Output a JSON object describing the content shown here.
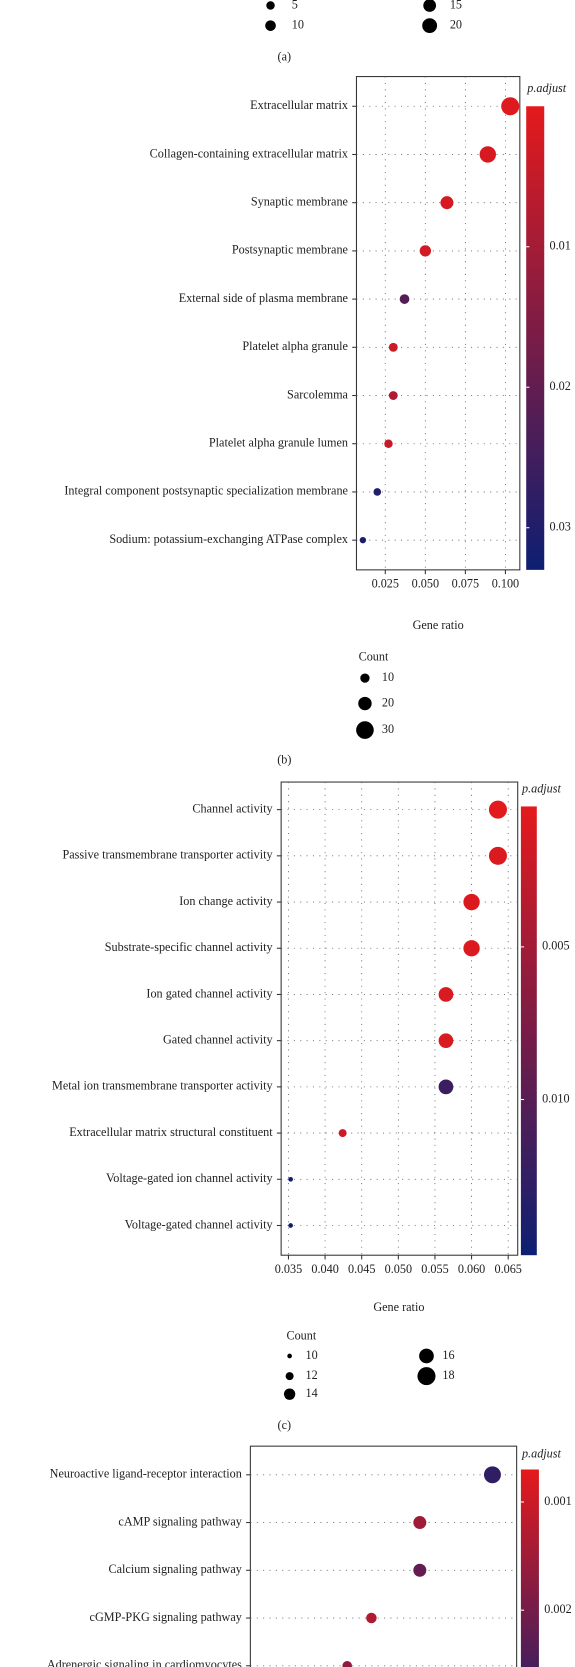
{
  "chart_data": [
    {
      "type": "scatter",
      "panel_label": "(a)",
      "size_legend": {
        "values": [
          5,
          10,
          15,
          20
        ]
      }
    },
    {
      "type": "scatter",
      "panel_label": "(b)",
      "xlabel": "Gene ratio",
      "categories": [
        "Extracellular matrix",
        "Collagen-containing extracellular matrix",
        "Synaptic membrane",
        "Postsynaptic membrane",
        "External side of plasma membrane",
        "Platelet alpha granule",
        "Sarcolemma",
        "Platelet alpha granule lumen",
        "Integral component postsynaptic specialization membrane",
        "Sodium: potassium-exchanging ATPase complex"
      ],
      "values": [
        0.103,
        0.089,
        0.0635,
        0.05,
        0.037,
        0.03,
        0.03,
        0.027,
        0.02,
        0.011
      ],
      "sizes": [
        31,
        27,
        19,
        15,
        11,
        9,
        9,
        8,
        6,
        3
      ],
      "color_values": [
        0.001,
        0.002,
        0.002,
        0.003,
        0.022,
        0.004,
        0.008,
        0.005,
        0.03,
        0.031
      ],
      "xlim": [
        0.007,
        0.109
      ],
      "xticks": [
        0.025,
        {
          "value": 0.05,
          "label": "0.050"
        },
        0.075,
        {
          "value": 0.1,
          "label": "0.100"
        }
      ],
      "color_label": "p.adjust",
      "clim": [
        0,
        0.033
      ],
      "cticks": [
        0.01,
        0.02,
        0.03
      ],
      "colors": [
        "#e41a1c",
        "#0d1f72"
      ],
      "size_legend": {
        "title": "Count",
        "values": [
          10,
          20,
          30
        ]
      },
      "grid": true
    },
    {
      "type": "scatter",
      "panel_label": "(c)",
      "xlabel": "Gene ratio",
      "categories": [
        "Channel activity",
        "Passive transmembrane transporter activity",
        "Ion change activity",
        "Substrate-specific channel activity",
        "Ion gated channel activity",
        "Gated channel activity",
        "Metal ion transmembrane transporter activity",
        "Extracellular matrix structural constituent",
        "Voltage-gated ion channel activity",
        "Voltage-gated channel activity"
      ],
      "values": [
        0.0636,
        0.0636,
        0.06,
        0.06,
        0.0565,
        0.0565,
        0.0565,
        0.0424,
        0.0353,
        0.0353
      ],
      "sizes": [
        18,
        18,
        17,
        17,
        16,
        16,
        16,
        12,
        10,
        10
      ],
      "color_values": [
        0.0005,
        0.001,
        0.001,
        0.001,
        0.0012,
        0.0012,
        0.012,
        0.002,
        0.015,
        0.015
      ],
      "xlim": [
        0.034,
        0.0663
      ],
      "xticks": [
        0.035,
        {
          "value": 0.04,
          "label": "0.040"
        },
        0.045,
        {
          "value": 0.05,
          "label": "0.050"
        },
        0.055,
        {
          "value": 0.06,
          "label": "0.060"
        },
        0.065
      ],
      "color_label": "p.adjust",
      "clim": [
        0.0004,
        0.0151
      ],
      "cticks": [
        0.005,
        {
          "value": 0.01,
          "label": "0.010"
        }
      ],
      "colors": [
        "#e41a1c",
        "#0d1f72"
      ],
      "size_legend": {
        "title": "Count",
        "values": [
          10,
          12,
          14,
          16,
          18
        ]
      },
      "grid": true
    },
    {
      "type": "scatter",
      "categories": [
        "Neuroactive ligand-receptor interaction",
        "cAMP signaling pathway",
        "Calcium signaling pathway",
        "cGMP-PKG signaling pathway",
        "Adrenergic signaling in cardiomyocytes"
      ],
      "values": [
        0.12,
        0.09,
        0.09,
        0.07,
        0.06
      ],
      "sizes": [
        30,
        22,
        22,
        17,
        15
      ],
      "color_values": [
        0.0028,
        0.0015,
        0.0022,
        0.0013,
        0.0017
      ],
      "xlim": [
        0.02,
        0.13
      ],
      "color_label": "p.adjust",
      "clim": [
        0.0007,
        0.0032
      ],
      "cticks": [
        0.001,
        0.002
      ],
      "colors": [
        "#e41a1c",
        "#0d1f72"
      ],
      "grid": true
    }
  ]
}
